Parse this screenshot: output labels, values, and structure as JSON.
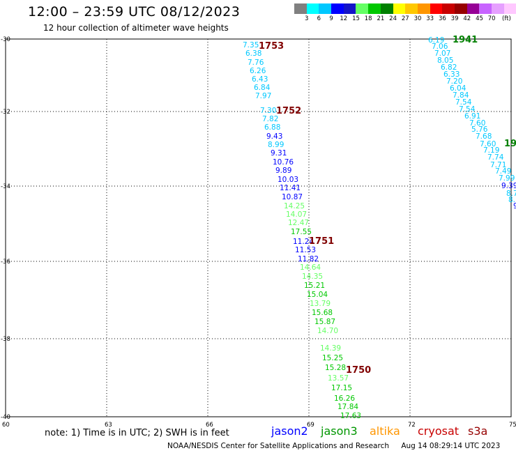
{
  "title": "12:00 – 23:59 UTC 08/12/2023",
  "subtitle": "12 hour collection of altimeter wave heights",
  "scale": {
    "unit": "(ft)",
    "colors": [
      "#808080",
      "#00ffff",
      "#00c8ff",
      "#0000ff",
      "#1414c8",
      "#64ff64",
      "#00c800",
      "#008000",
      "#ffff00",
      "#ffc800",
      "#ff9600",
      "#ff0000",
      "#c80000",
      "#960000",
      "#960096",
      "#c864ff",
      "#e6a0ff",
      "#ffc8ff",
      "#000000"
    ],
    "ticks": [
      "3",
      "6",
      "9",
      "12",
      "15",
      "18",
      "21",
      "24",
      "27",
      "30",
      "33",
      "36",
      "39",
      "42",
      "45",
      "70"
    ]
  },
  "axes": {
    "lon_labels": [
      "60",
      "63",
      "66",
      "69",
      "72",
      "75"
    ],
    "lat_labels": [
      "-30",
      "-32",
      "-34",
      "-36",
      "-38",
      "-40"
    ]
  },
  "tracks": {
    "track1": [
      {
        "v": "7.35",
        "c": "#00c8ff"
      },
      {
        "v": "6.38",
        "c": "#00c8ff"
      },
      {
        "v": "7.76",
        "c": "#00c8ff"
      },
      {
        "v": "6.26",
        "c": "#00c8ff"
      },
      {
        "v": "6.43",
        "c": "#00c8ff"
      },
      {
        "v": "6.84",
        "c": "#00c8ff"
      },
      {
        "v": "7.97",
        "c": "#00c8ff"
      },
      {
        "v": "7.30",
        "c": "#00c8ff"
      },
      {
        "v": "7.82",
        "c": "#00c8ff"
      },
      {
        "v": "6.88",
        "c": "#00c8ff"
      },
      {
        "v": "9.43",
        "c": "#0000ff"
      },
      {
        "v": "8.99",
        "c": "#00c8ff"
      },
      {
        "v": "9.31",
        "c": "#0000ff"
      },
      {
        "v": "10.76",
        "c": "#0000ff"
      },
      {
        "v": "9.89",
        "c": "#0000ff"
      },
      {
        "v": "10.03",
        "c": "#0000ff"
      },
      {
        "v": "11.41",
        "c": "#0000ff"
      },
      {
        "v": "10.87",
        "c": "#0000ff"
      },
      {
        "v": "14.25",
        "c": "#64ff64"
      },
      {
        "v": "14.07",
        "c": "#64ff64"
      },
      {
        "v": "12.47",
        "c": "#64ff64"
      },
      {
        "v": "17.55",
        "c": "#00c800"
      },
      {
        "v": "11.24",
        "c": "#0000ff"
      },
      {
        "v": "11.53",
        "c": "#0000ff"
      },
      {
        "v": "11.82",
        "c": "#0000ff"
      },
      {
        "v": "14.64",
        "c": "#64ff64"
      },
      {
        "v": "14.35",
        "c": "#64ff64"
      },
      {
        "v": "15.21",
        "c": "#00c800"
      },
      {
        "v": "15.04",
        "c": "#00c800"
      },
      {
        "v": "13.79",
        "c": "#64ff64"
      },
      {
        "v": "15.68",
        "c": "#00c800"
      },
      {
        "v": "15.87",
        "c": "#00c800"
      },
      {
        "v": "14.70",
        "c": "#64ff64"
      },
      {
        "v": "14.39",
        "c": "#64ff64"
      },
      {
        "v": "15.25",
        "c": "#00c800"
      },
      {
        "v": "15.28",
        "c": "#00c800"
      },
      {
        "v": "13.57",
        "c": "#64ff64"
      },
      {
        "v": "17.15",
        "c": "#00c800"
      },
      {
        "v": "16.26",
        "c": "#00c800"
      },
      {
        "v": "17.84",
        "c": "#00c800"
      },
      {
        "v": "17.63",
        "c": "#00c800"
      }
    ],
    "track1_times": [
      "1753",
      "1752",
      "1751",
      "1750"
    ],
    "track2": [
      {
        "v": "6.19",
        "c": "#00c8ff"
      },
      {
        "v": "7.06",
        "c": "#00c8ff"
      },
      {
        "v": "7.07",
        "c": "#00c8ff"
      },
      {
        "v": "8.05",
        "c": "#00c8ff"
      },
      {
        "v": "6.82",
        "c": "#00c8ff"
      },
      {
        "v": "6.33",
        "c": "#00c8ff"
      },
      {
        "v": "7.20",
        "c": "#00c8ff"
      },
      {
        "v": "6.04",
        "c": "#00c8ff"
      },
      {
        "v": "7.84",
        "c": "#00c8ff"
      },
      {
        "v": "7.54",
        "c": "#00c8ff"
      },
      {
        "v": "7.54",
        "c": "#00c8ff"
      },
      {
        "v": "6.91",
        "c": "#00c8ff"
      },
      {
        "v": "7.60",
        "c": "#00c8ff"
      },
      {
        "v": "5.76",
        "c": "#00c8ff"
      },
      {
        "v": "7.68",
        "c": "#00c8ff"
      },
      {
        "v": "7.60",
        "c": "#00c8ff"
      },
      {
        "v": "7.19",
        "c": "#00c8ff"
      },
      {
        "v": "7.74",
        "c": "#00c8ff"
      },
      {
        "v": "7.71",
        "c": "#00c8ff"
      },
      {
        "v": "7.49",
        "c": "#00c8ff"
      },
      {
        "v": "7.99",
        "c": "#00c8ff"
      },
      {
        "v": "9.39",
        "c": "#0000ff"
      },
      {
        "v": "8.7",
        "c": "#00c8ff"
      },
      {
        "v": "8.",
        "c": "#00c8ff"
      },
      {
        "v": "9",
        "c": "#0000ff"
      }
    ],
    "track2_times": [
      "1941",
      "19"
    ]
  },
  "note": "note:  1) Time is in UTC; 2) SWH is in feet",
  "satellites": [
    {
      "name": "jason2",
      "color": "#0000ff"
    },
    {
      "name": "jason3",
      "color": "#009600"
    },
    {
      "name": "altika",
      "color": "#ff9600"
    },
    {
      "name": "cryosat",
      "color": "#c80000"
    },
    {
      "name": "s3a",
      "color": "#960000"
    }
  ],
  "footer": {
    "credit": "NOAA/NESDIS Center for Satellite Applications and Research",
    "timestamp": "Aug 14 08:29:14 UTC 2023"
  }
}
